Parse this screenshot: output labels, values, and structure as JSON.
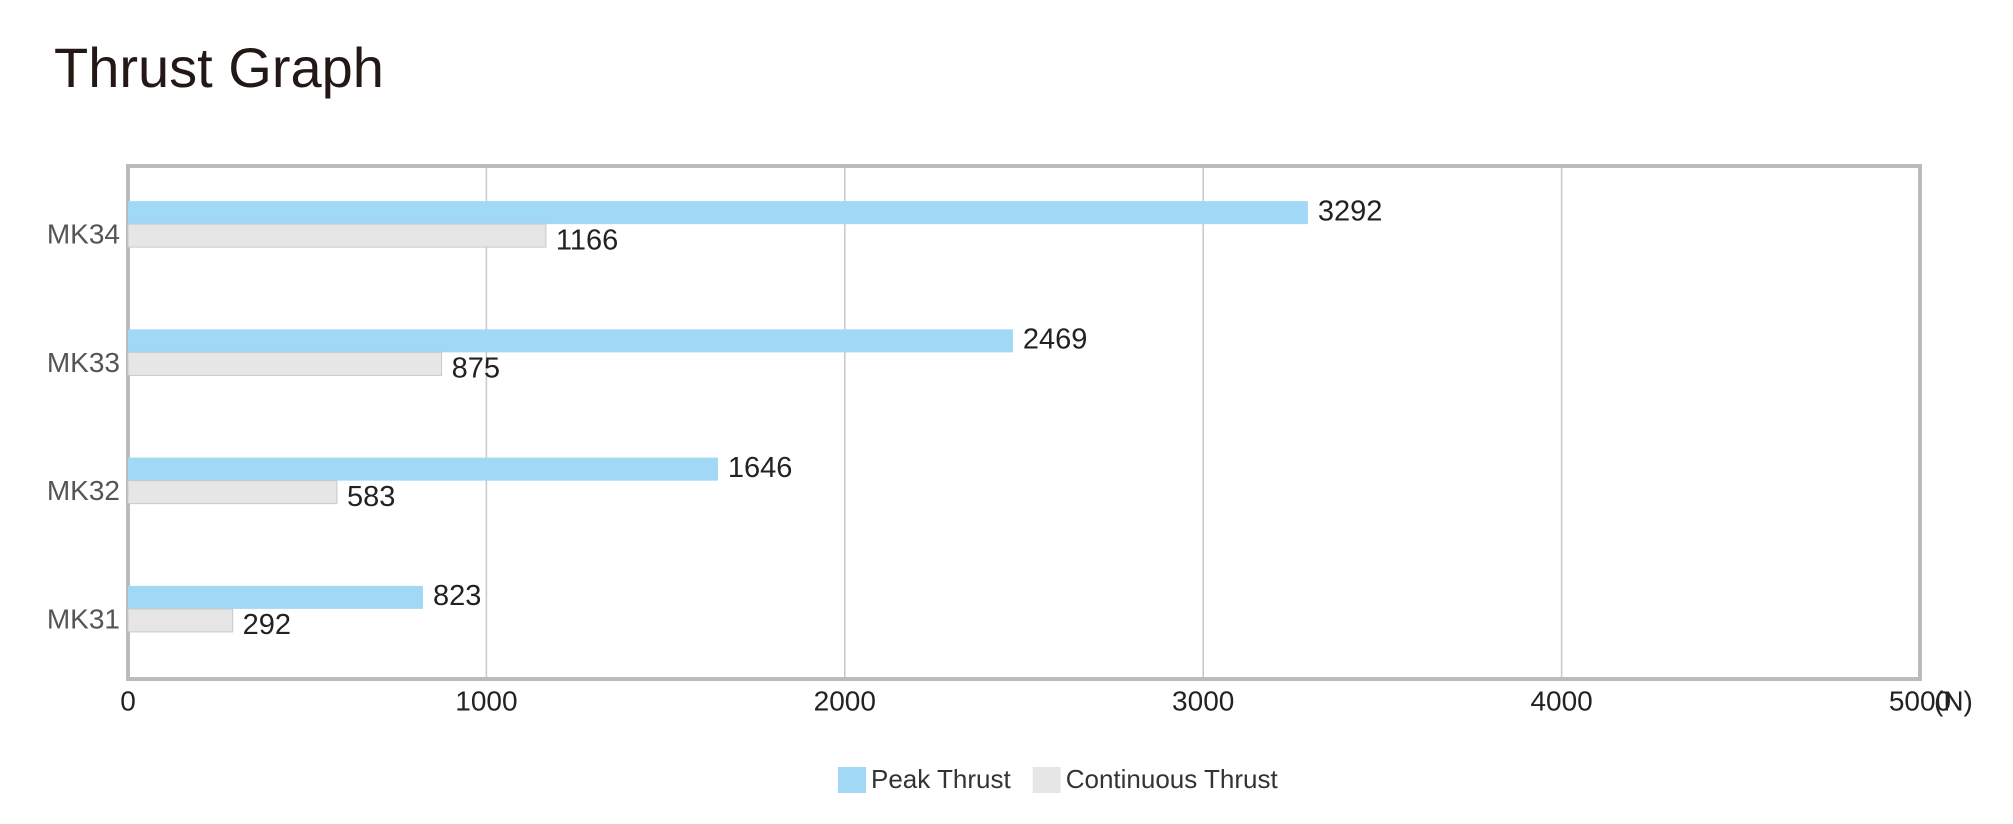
{
  "chart_data": {
    "type": "hbar",
    "title": "Thrust Graph",
    "categories": [
      "MK34",
      "MK33",
      "MK32",
      "MK31"
    ],
    "series": [
      {
        "name": "Peak Thrust",
        "color": "#a0d8f5",
        "values": [
          3292,
          2469,
          1646,
          823
        ]
      },
      {
        "name": "Continuous Thrust",
        "color": "#e6e6e6",
        "values": [
          1166,
          875,
          583,
          292
        ]
      }
    ],
    "xlim": [
      0,
      5000
    ],
    "xticks": [
      0,
      1000,
      2000,
      3000,
      4000,
      5000
    ],
    "x_unit": "(N)",
    "grid": true,
    "legend": "bottom"
  }
}
